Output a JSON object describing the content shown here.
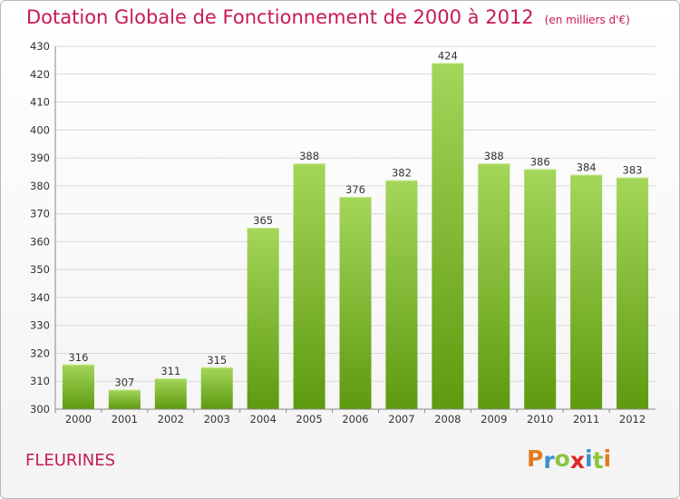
{
  "header": {
    "title": "Dotation Globale de Fonctionnement de 2000 à 2012",
    "subtitle": "(en milliers d'€)"
  },
  "footer": {
    "commune": "FLEURINES",
    "logo": [
      "P",
      "r",
      "o",
      "x",
      "i",
      "t",
      "i"
    ]
  },
  "colors": {
    "title": "#c8185a",
    "bar_top": "#a4d65a",
    "bar_bottom": "#5e9a10",
    "logo": [
      "#e37b1e",
      "#3a8fd0",
      "#8cc43c",
      "#e0232a",
      "#3a8fd0",
      "#8cc43c",
      "#e37b1e"
    ]
  },
  "chart_data": {
    "type": "bar",
    "categories": [
      "2000",
      "2001",
      "2002",
      "2003",
      "2004",
      "2005",
      "2006",
      "2007",
      "2008",
      "2009",
      "2010",
      "2011",
      "2012"
    ],
    "values": [
      316,
      307,
      311,
      315,
      365,
      388,
      376,
      382,
      424,
      388,
      386,
      384,
      383
    ],
    "title": "Dotation Globale de Fonctionnement de 2000 à 2012",
    "ylim": [
      300,
      430
    ],
    "yticks": [
      300,
      310,
      320,
      330,
      340,
      350,
      360,
      370,
      380,
      390,
      400,
      410,
      420,
      430
    ],
    "grid": true,
    "legend": "none"
  }
}
